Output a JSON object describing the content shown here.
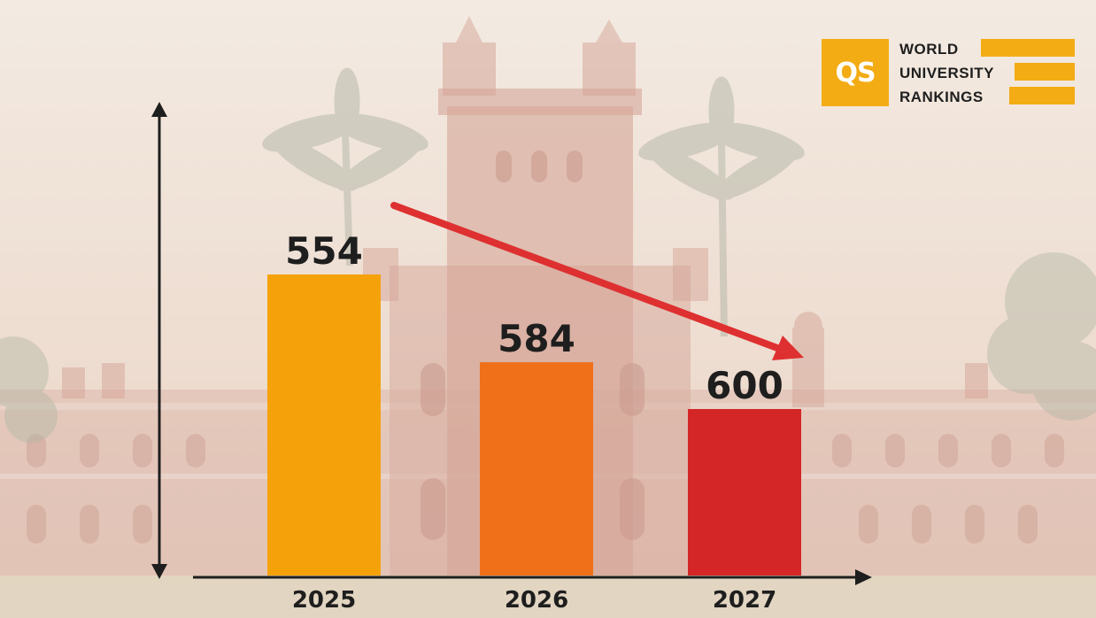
{
  "chart_data": {
    "type": "bar",
    "categories": [
      "2025",
      "2026",
      "2027"
    ],
    "values": [
      554,
      584,
      600
    ],
    "data_labels": [
      "554",
      "584",
      "600"
    ],
    "colors": [
      "#f5a20a",
      "#f0701a",
      "#d42626"
    ],
    "trend_arrow": {
      "color": "#de3030",
      "from": "2025",
      "to": "2027",
      "direction": "down-right"
    },
    "axis_color": "#1e1e1e",
    "title": "",
    "xlabel": "",
    "ylabel": "",
    "grid": false,
    "legend": "none"
  },
  "branding": {
    "logo_mark": "QS",
    "lines": [
      "WORLD",
      "UNIVERSITY",
      "RANKINGS"
    ],
    "accent": "#f3ac14"
  },
  "background": {
    "scene": "university-building-with-palm-trees",
    "tone": "#efe3d6"
  }
}
